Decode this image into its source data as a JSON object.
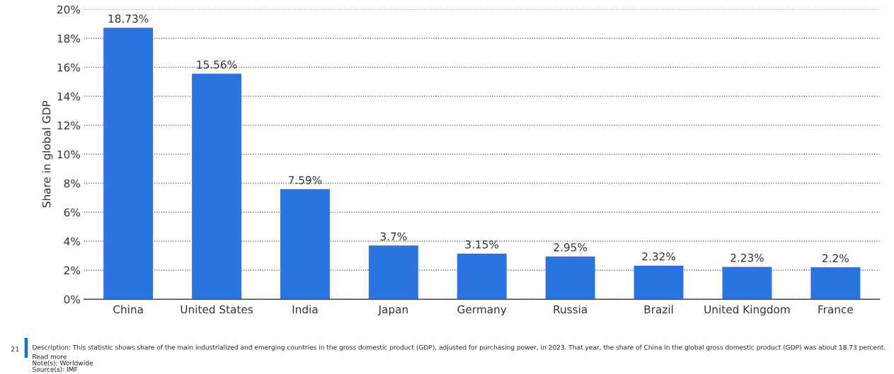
{
  "chart_data": {
    "type": "bar",
    "ylabel": "Share in global GDP",
    "categories": [
      "China",
      "United States",
      "India",
      "Japan",
      "Germany",
      "Russia",
      "Brazil",
      "United Kingdom",
      "France"
    ],
    "values": [
      18.73,
      15.56,
      7.59,
      3.7,
      3.15,
      2.95,
      2.32,
      2.23,
      2.2
    ],
    "value_labels": [
      "18.73%",
      "15.56%",
      "7.59%",
      "3.7%",
      "3.15%",
      "2.95%",
      "2.32%",
      "2.23%",
      "2.2%"
    ],
    "color": "#2b74df",
    "ylim": [
      0,
      20
    ],
    "yticks": [
      {
        "value": 0,
        "label": "0%"
      },
      {
        "value": 2,
        "label": "2%"
      },
      {
        "value": 4,
        "label": "4%"
      },
      {
        "value": 6,
        "label": "6%"
      },
      {
        "value": 8,
        "label": "8%"
      },
      {
        "value": 10,
        "label": "10%"
      },
      {
        "value": 12,
        "label": "12%"
      },
      {
        "value": 14,
        "label": "14%"
      },
      {
        "value": 16,
        "label": "16%"
      },
      {
        "value": 18,
        "label": "18%"
      },
      {
        "value": 20,
        "label": "20%"
      }
    ],
    "grid": "y",
    "line_style": "dotted",
    "annotations": [
      "21",
      "Description: This statistic shows share of the main industrialized and emerging countries in the gross domestic product (GDP), adjusted for purchasing power, in 2023. That year, the share of China in the global gross domestic product (GDP) was about 18.73 percent.",
      "Read more",
      "Note(s): Worldwide",
      "Source(s): IMF"
    ]
  }
}
